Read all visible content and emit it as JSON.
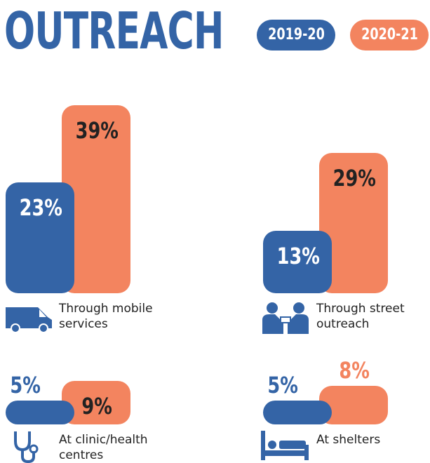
{
  "title": "OUTREACH",
  "legend": [
    {
      "name": "2019-20",
      "color": "#3464a6"
    },
    {
      "name": "2020-21",
      "color": "#f3845f"
    }
  ],
  "chart_data": [
    {
      "type": "bar",
      "title": "Through mobile services",
      "values": [
        23,
        39
      ],
      "value_labels": [
        "23%",
        "39%"
      ]
    },
    {
      "type": "bar",
      "title": "Through street outreach",
      "values": [
        13,
        29
      ],
      "value_labels": [
        "13%",
        "29%"
      ]
    },
    {
      "type": "bar",
      "title": "At clinic/health centres",
      "values": [
        5,
        9
      ],
      "value_labels": [
        "5%",
        "9%"
      ]
    },
    {
      "type": "bar",
      "title": "At shelters",
      "values": [
        5,
        8
      ],
      "value_labels": [
        "5%",
        "8%"
      ]
    }
  ]
}
